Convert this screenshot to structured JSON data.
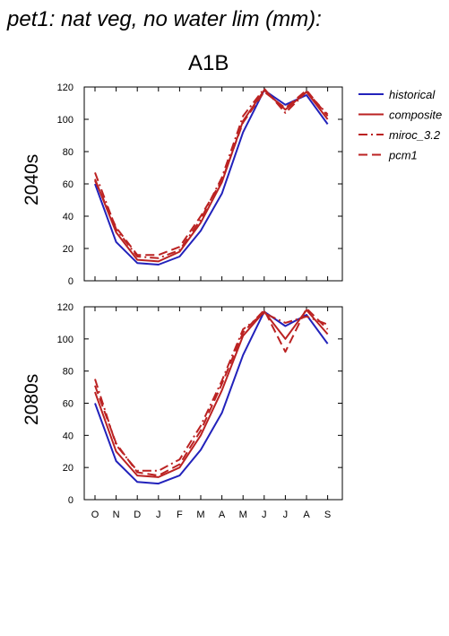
{
  "title": "pet1: nat veg, no water lim (mm):",
  "scenario": "A1B",
  "colors": {
    "historical": "#2222bb",
    "future": "#bb2222"
  },
  "legend": [
    {
      "name": "historical",
      "style": "solid",
      "color": "#2222bb"
    },
    {
      "name": "composite",
      "style": "solid",
      "color": "#bb2222"
    },
    {
      "name": "miroc_3.2",
      "style": "dashdot",
      "color": "#bb2222"
    },
    {
      "name": "pcm1",
      "style": "dash",
      "color": "#bb2222"
    }
  ],
  "chart_data": [
    {
      "type": "line",
      "row_label": "2040s",
      "categories": [
        "O",
        "N",
        "D",
        "J",
        "F",
        "M",
        "A",
        "M",
        "J",
        "J",
        "A",
        "S"
      ],
      "ylim": [
        0,
        120
      ],
      "yticks": [
        0,
        20,
        40,
        60,
        80,
        100,
        120
      ],
      "series": [
        {
          "name": "historical",
          "values": [
            60,
            24,
            11,
            10,
            15,
            31,
            54,
            92,
            118,
            109,
            115,
            97
          ]
        },
        {
          "name": "composite",
          "values": [
            63,
            30,
            13,
            12,
            18,
            36,
            61,
            99,
            118,
            106,
            117,
            100
          ]
        },
        {
          "name": "miroc_3.2",
          "values": [
            67,
            32,
            15,
            14,
            19,
            38,
            64,
            102,
            119,
            104,
            117,
            103
          ]
        },
        {
          "name": "pcm1",
          "values": [
            62,
            33,
            16,
            16,
            21,
            40,
            62,
            98,
            117,
            107,
            118,
            102
          ]
        }
      ]
    },
    {
      "type": "line",
      "row_label": "2080s",
      "categories": [
        "O",
        "N",
        "D",
        "J",
        "F",
        "M",
        "A",
        "M",
        "J",
        "J",
        "A",
        "S"
      ],
      "ylim": [
        0,
        120
      ],
      "yticks": [
        0,
        20,
        40,
        60,
        80,
        100,
        120
      ],
      "series": [
        {
          "name": "historical",
          "values": [
            60,
            24,
            11,
            10,
            15,
            31,
            54,
            90,
            117,
            108,
            115,
            97
          ]
        },
        {
          "name": "composite",
          "values": [
            67,
            30,
            15,
            14,
            20,
            40,
            68,
            102,
            117,
            100,
            118,
            103
          ]
        },
        {
          "name": "miroc_3.2",
          "values": [
            75,
            34,
            18,
            18,
            25,
            46,
            74,
            106,
            116,
            110,
            114,
            109
          ]
        },
        {
          "name": "pcm1",
          "values": [
            71,
            35,
            17,
            15,
            22,
            43,
            72,
            104,
            118,
            92,
            119,
            106
          ]
        }
      ]
    }
  ]
}
